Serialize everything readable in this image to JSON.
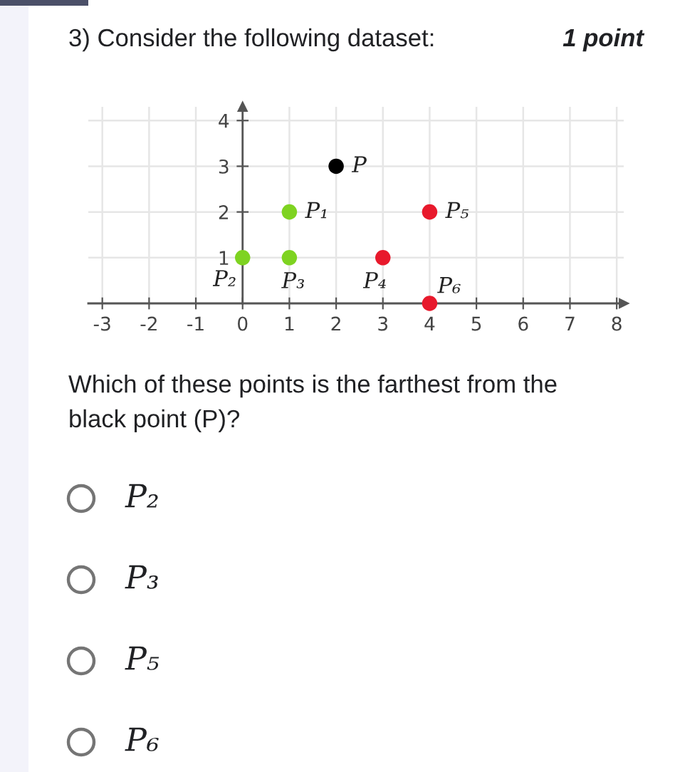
{
  "chart_data": {
    "type": "scatter",
    "title": "3) Consider the following dataset:",
    "annotations": [
      "1 point",
      "Which of these points is the farthest from the\nblack point (P)?",
      "P₂",
      "P₃",
      "P₅",
      "P₆"
    ],
    "series": [
      {
        "name": "P",
        "color": "#000000",
        "x": [
          2
        ],
        "values": [
          3
        ]
      },
      {
        "name": "P₁",
        "color": "#7ed321",
        "x": [
          1
        ],
        "values": [
          2
        ]
      },
      {
        "name": "P₂",
        "color": "#7ed321",
        "x": [
          0
        ],
        "values": [
          1
        ]
      },
      {
        "name": "P₃",
        "color": "#7ed321",
        "x": [
          1
        ],
        "values": [
          1
        ]
      },
      {
        "name": "P₄",
        "color": "#e8192c",
        "x": [
          3
        ],
        "values": [
          1
        ]
      },
      {
        "name": "P₅",
        "color": "#e8192c",
        "x": [
          4
        ],
        "values": [
          2
        ]
      },
      {
        "name": "P₆",
        "color": "#e8192c",
        "x": [
          4
        ],
        "values": [
          0
        ]
      }
    ],
    "xlim": [
      -3.3,
      8.15
    ],
    "ylim": [
      0,
      4.3
    ],
    "xticks": [
      -3,
      -2,
      -1,
      0,
      1,
      2,
      3,
      4,
      5,
      6,
      7,
      8
    ],
    "yticks": [
      1,
      2,
      3,
      4
    ],
    "grid": true,
    "marker": "circle"
  }
}
